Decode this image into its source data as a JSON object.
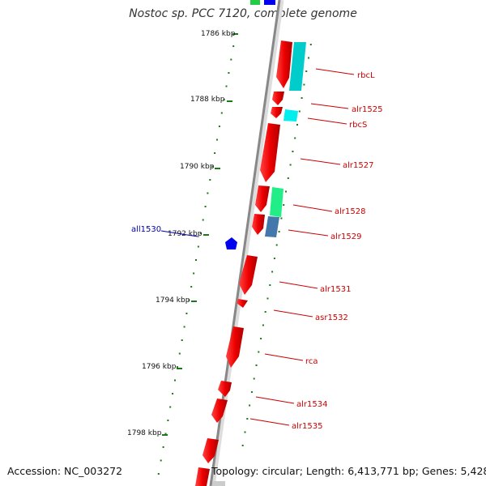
{
  "title": "Nostoc sp. PCC 7120, complete genome",
  "footer": {
    "accession": "Accession: NC_003272",
    "topology": "Topology: circular; Length: 6,413,771 bp; Genes: 5,428"
  },
  "colors": {
    "forward_gene": "#ee0000",
    "reverse_gene": "#0000ee",
    "rbcL": "#00cccc",
    "rbcS": "#00eeee",
    "alr1528_track2": "#22ee88",
    "alr1529_track2": "#4477aa",
    "tick_green": "#1a7a1a",
    "backbone": "#888888"
  },
  "scale_marks": [
    "1786 kbp",
    "1788 kbp",
    "1790 kbp",
    "1792 kbp",
    "1794 kbp",
    "1796 kbp",
    "1798 kbp"
  ],
  "gene_labels": [
    {
      "name": "rbcL",
      "color": "#cc0000"
    },
    {
      "name": "alr1525",
      "color": "#cc0000"
    },
    {
      "name": "rbcS",
      "color": "#cc0000"
    },
    {
      "name": "alr1527",
      "color": "#cc0000"
    },
    {
      "name": "alr1528",
      "color": "#cc0000"
    },
    {
      "name": "alr1529",
      "color": "#cc0000"
    },
    {
      "name": "all1530",
      "color": "#0000aa"
    },
    {
      "name": "alr1531",
      "color": "#cc0000"
    },
    {
      "name": "asr1532",
      "color": "#cc0000"
    },
    {
      "name": "rca",
      "color": "#cc0000"
    },
    {
      "name": "alr1534",
      "color": "#cc0000"
    },
    {
      "name": "alr1535",
      "color": "#cc0000"
    }
  ]
}
